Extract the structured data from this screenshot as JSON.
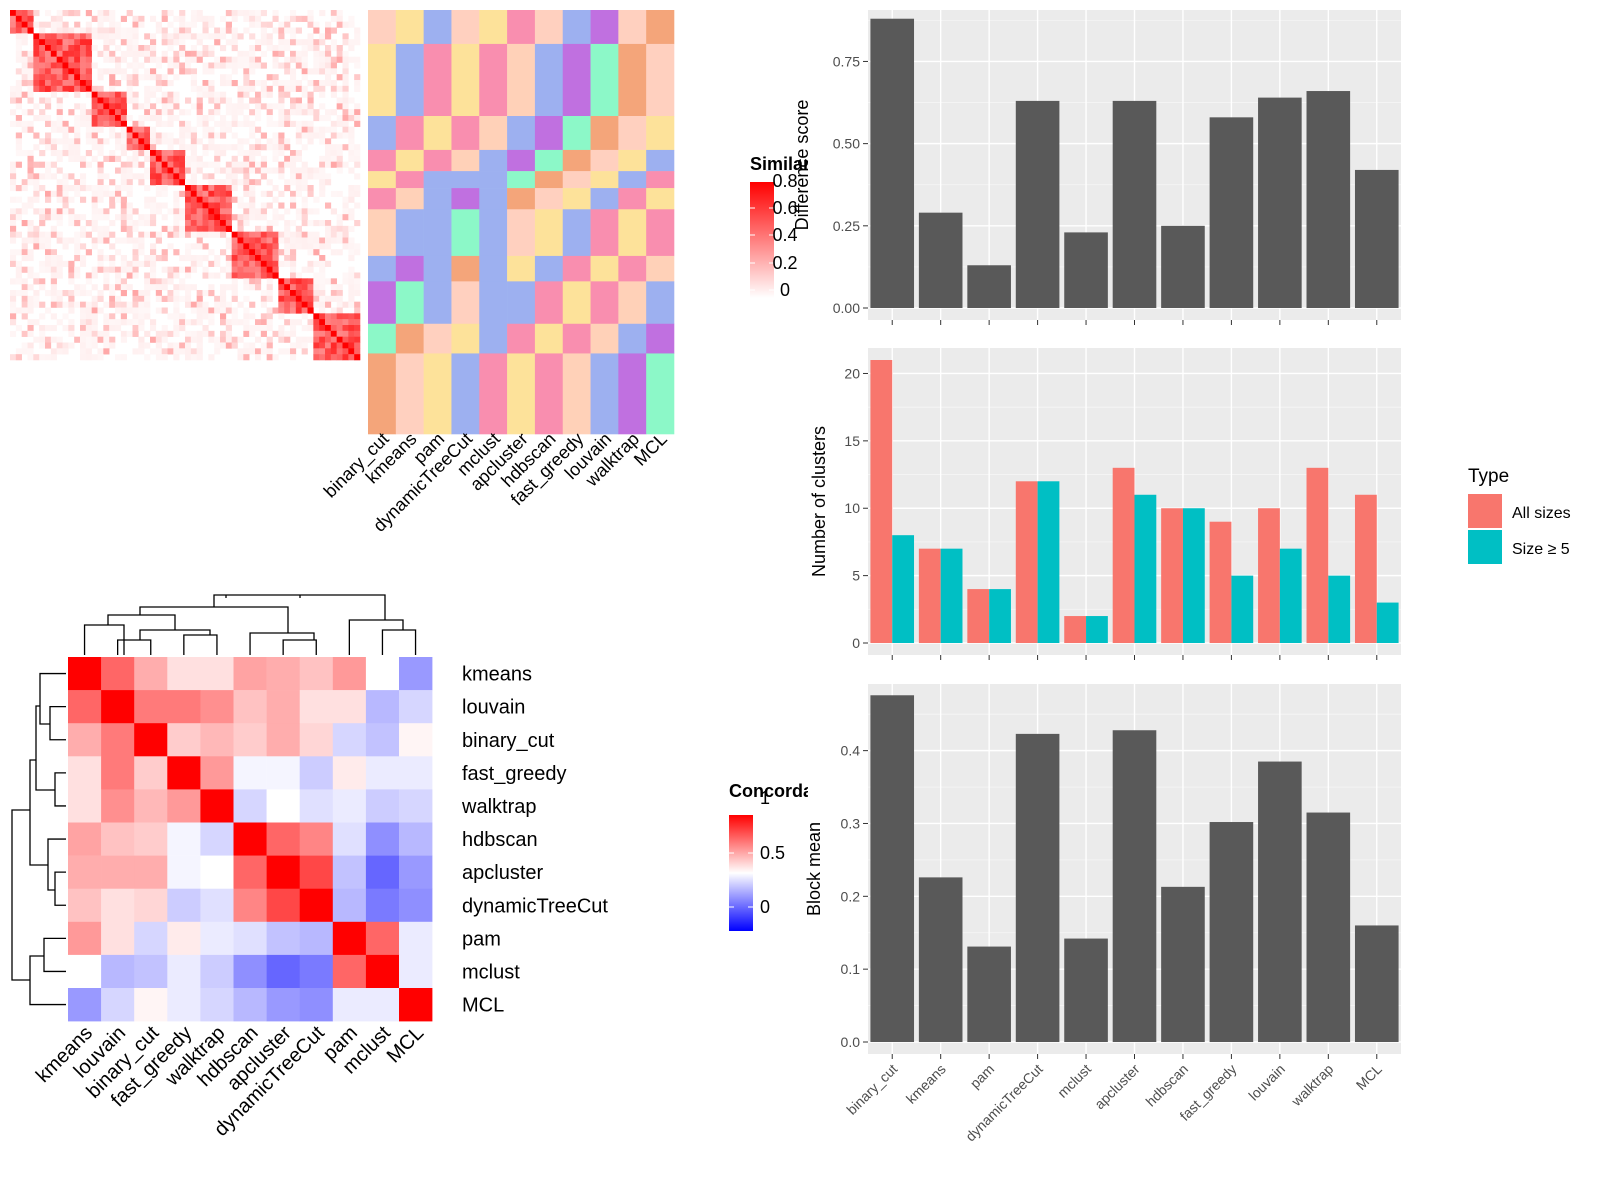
{
  "methods": [
    "binary_cut",
    "kmeans",
    "pam",
    "dynamicTreeCut",
    "mclust",
    "apcluster",
    "hdbscan",
    "fast_greedy",
    "louvain",
    "walktrap",
    "MCL"
  ],
  "colors": {
    "panel_bg": "#ebebeb",
    "bar": "#595959",
    "all_sizes": "#f8766d",
    "size5": "#00bfc4",
    "heat_high": "#ff0000",
    "heat_mid": "#ffffff",
    "heat_low": "#0000ff"
  },
  "similarity_legend": {
    "title": "Similarity",
    "ticks": [
      "0",
      "0.2",
      "0.4",
      "0.6",
      "0.8"
    ]
  },
  "concordance_legend": {
    "title": "Concordance",
    "ticks": [
      "0",
      "0.5",
      "1"
    ]
  },
  "concordance": {
    "order": [
      "kmeans",
      "louvain",
      "binary_cut",
      "fast_greedy",
      "walktrap",
      "hdbscan",
      "apcluster",
      "dynamicTreeCut",
      "pam",
      "mclust",
      "MCL"
    ],
    "matrix": [
      [
        1.0,
        0.8,
        0.66,
        0.56,
        0.56,
        0.68,
        0.66,
        0.62,
        0.7,
        0.5,
        0.3
      ],
      [
        0.8,
        1.0,
        0.76,
        0.76,
        0.72,
        0.62,
        0.66,
        0.56,
        0.56,
        0.36,
        0.42
      ],
      [
        0.66,
        0.76,
        1.0,
        0.6,
        0.64,
        0.6,
        0.66,
        0.58,
        0.42,
        0.38,
        0.52
      ],
      [
        0.56,
        0.76,
        0.6,
        1.0,
        0.7,
        0.48,
        0.48,
        0.4,
        0.54,
        0.46,
        0.46
      ],
      [
        0.56,
        0.72,
        0.64,
        0.7,
        1.0,
        0.42,
        0.5,
        0.44,
        0.46,
        0.4,
        0.42
      ],
      [
        0.68,
        0.62,
        0.6,
        0.48,
        0.42,
        1.0,
        0.8,
        0.74,
        0.44,
        0.28,
        0.36
      ],
      [
        0.66,
        0.66,
        0.66,
        0.48,
        0.5,
        0.8,
        1.0,
        0.86,
        0.38,
        0.2,
        0.3
      ],
      [
        0.62,
        0.56,
        0.58,
        0.4,
        0.44,
        0.74,
        0.86,
        1.0,
        0.36,
        0.24,
        0.28
      ],
      [
        0.7,
        0.56,
        0.42,
        0.54,
        0.46,
        0.44,
        0.38,
        0.36,
        1.0,
        0.8,
        0.46
      ],
      [
        0.5,
        0.36,
        0.38,
        0.46,
        0.4,
        0.28,
        0.2,
        0.24,
        0.8,
        1.0,
        0.46
      ],
      [
        0.3,
        0.42,
        0.52,
        0.46,
        0.42,
        0.36,
        0.3,
        0.28,
        0.46,
        0.46,
        1.0
      ]
    ]
  },
  "chart_data": [
    {
      "type": "bar",
      "categories": [
        "binary_cut",
        "kmeans",
        "pam",
        "dynamicTreeCut",
        "mclust",
        "apcluster",
        "hdbscan",
        "fast_greedy",
        "louvain",
        "walktrap",
        "MCL"
      ],
      "values": [
        0.88,
        0.29,
        0.13,
        0.63,
        0.23,
        0.63,
        0.25,
        0.58,
        0.64,
        0.66,
        0.42
      ],
      "title": "",
      "xlabel": "",
      "ylabel": "Difference score",
      "ylim": [
        0,
        0.87
      ],
      "yticks": [
        "0.00",
        "0.25",
        "0.50",
        "0.75"
      ],
      "grid": true
    },
    {
      "type": "bar",
      "categories": [
        "binary_cut",
        "kmeans",
        "pam",
        "dynamicTreeCut",
        "mclust",
        "apcluster",
        "hdbscan",
        "fast_greedy",
        "louvain",
        "walktrap",
        "MCL"
      ],
      "series": [
        {
          "name": "All sizes",
          "values": [
            21,
            7,
            4,
            12,
            2,
            13,
            10,
            9,
            10,
            13,
            11
          ]
        },
        {
          "name": "Size ≥ 5",
          "values": [
            8,
            7,
            4,
            12,
            2,
            11,
            10,
            5,
            7,
            5,
            3
          ]
        }
      ],
      "title": "",
      "xlabel": "",
      "ylabel": "Number of clusters",
      "ylim": [
        0,
        21
      ],
      "yticks": [
        "0",
        "5",
        "10",
        "15",
        "20"
      ],
      "legend_title": "Type",
      "legend_position": "right",
      "grid": true
    },
    {
      "type": "bar",
      "categories": [
        "binary_cut",
        "kmeans",
        "pam",
        "dynamicTreeCut",
        "mclust",
        "apcluster",
        "hdbscan",
        "fast_greedy",
        "louvain",
        "walktrap",
        "MCL"
      ],
      "values": [
        0.476,
        0.226,
        0.131,
        0.423,
        0.142,
        0.428,
        0.213,
        0.302,
        0.385,
        0.315,
        0.16
      ],
      "title": "",
      "xlabel": "",
      "ylabel": "Block mean",
      "ylim": [
        0,
        0.475
      ],
      "yticks": [
        "0.0",
        "0.1",
        "0.2",
        "0.3",
        "0.4"
      ],
      "grid": true
    }
  ]
}
